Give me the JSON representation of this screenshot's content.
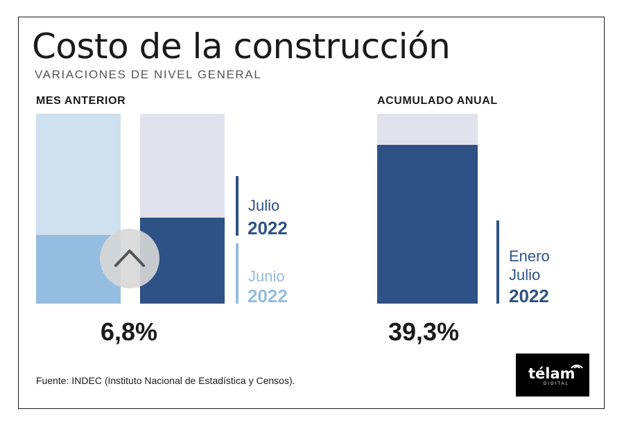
{
  "title": "Costo de la construcción",
  "subtitle": "VARIACIONES DE NIVEL GENERAL",
  "sections": {
    "left": "MES ANTERIOR",
    "right": "ACUMULADO ANUAL"
  },
  "legend": {
    "julio_label": "Julio",
    "julio_year": "2022",
    "junio_label": "Junio",
    "junio_year": "2022",
    "enero_label": "Enero",
    "enero_julio_label": "Julio",
    "enero_year": "2022"
  },
  "values": {
    "monthly": "6,8%",
    "annual": "39,3%"
  },
  "source": "Fuente: INDEC (Instituto Nacional de Estadística y Censos).",
  "logo": {
    "name": "télam",
    "sub": "DIGITAL"
  },
  "colors": {
    "dark_blue": "#2e5285",
    "light_blue": "#95bde0",
    "pale_blue": "#cfe0ef",
    "pale_grey": "#e1e2ec"
  },
  "chart_data": [
    {
      "type": "bar",
      "title": "MES ANTERIOR",
      "categories": [
        "Junio 2022",
        "Julio 2022"
      ],
      "values": [
        5.4,
        6.8
      ],
      "ylim": [
        0,
        15
      ],
      "data_labels": [
        "",
        "6,8%"
      ]
    },
    {
      "type": "bar",
      "title": "ACUMULADO ANUAL",
      "categories": [
        "Enero Julio 2022"
      ],
      "values": [
        39.3
      ],
      "ylim": [
        0,
        47
      ],
      "data_labels": [
        "39,3%"
      ]
    }
  ]
}
